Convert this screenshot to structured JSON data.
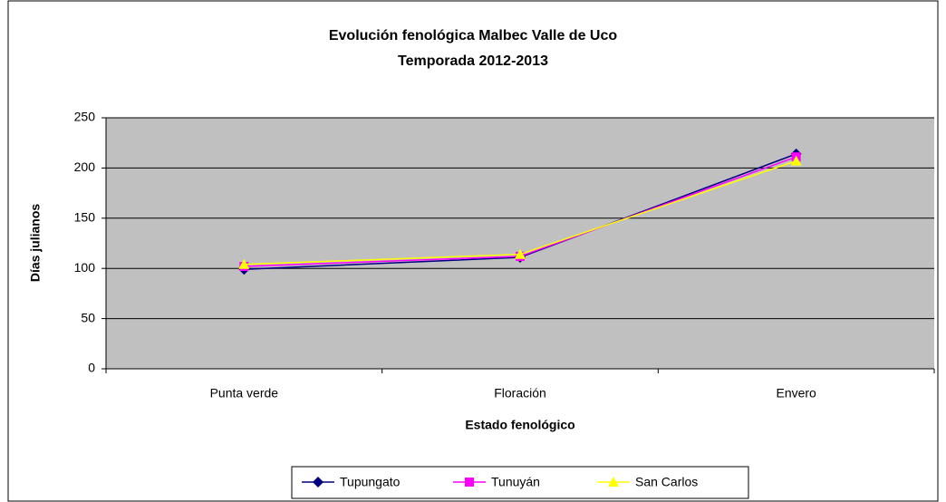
{
  "chart_data": {
    "type": "line",
    "title": "Evolución fenológica Malbec Valle de Uco",
    "subtitle": "Temporada 2012-2013",
    "x_label": "Estado fenológico",
    "y_label": "Días julianos",
    "categories": [
      "Punta verde",
      "Floración",
      "Envero"
    ],
    "series": [
      {
        "name": "Tupungato",
        "color": "#000080",
        "marker": "diamond",
        "values": [
          99,
          111,
          214
        ]
      },
      {
        "name": "Tunuyán",
        "color": "#ff00ff",
        "marker": "square",
        "values": [
          102,
          112,
          211
        ]
      },
      {
        "name": "San Carlos",
        "color": "#ffff00",
        "marker": "triangle",
        "values": [
          104,
          114,
          207
        ]
      }
    ],
    "ylim": [
      0,
      250
    ],
    "yticks": [
      0,
      50,
      100,
      150,
      200,
      250
    ],
    "grid": true,
    "legend": "bottom"
  }
}
